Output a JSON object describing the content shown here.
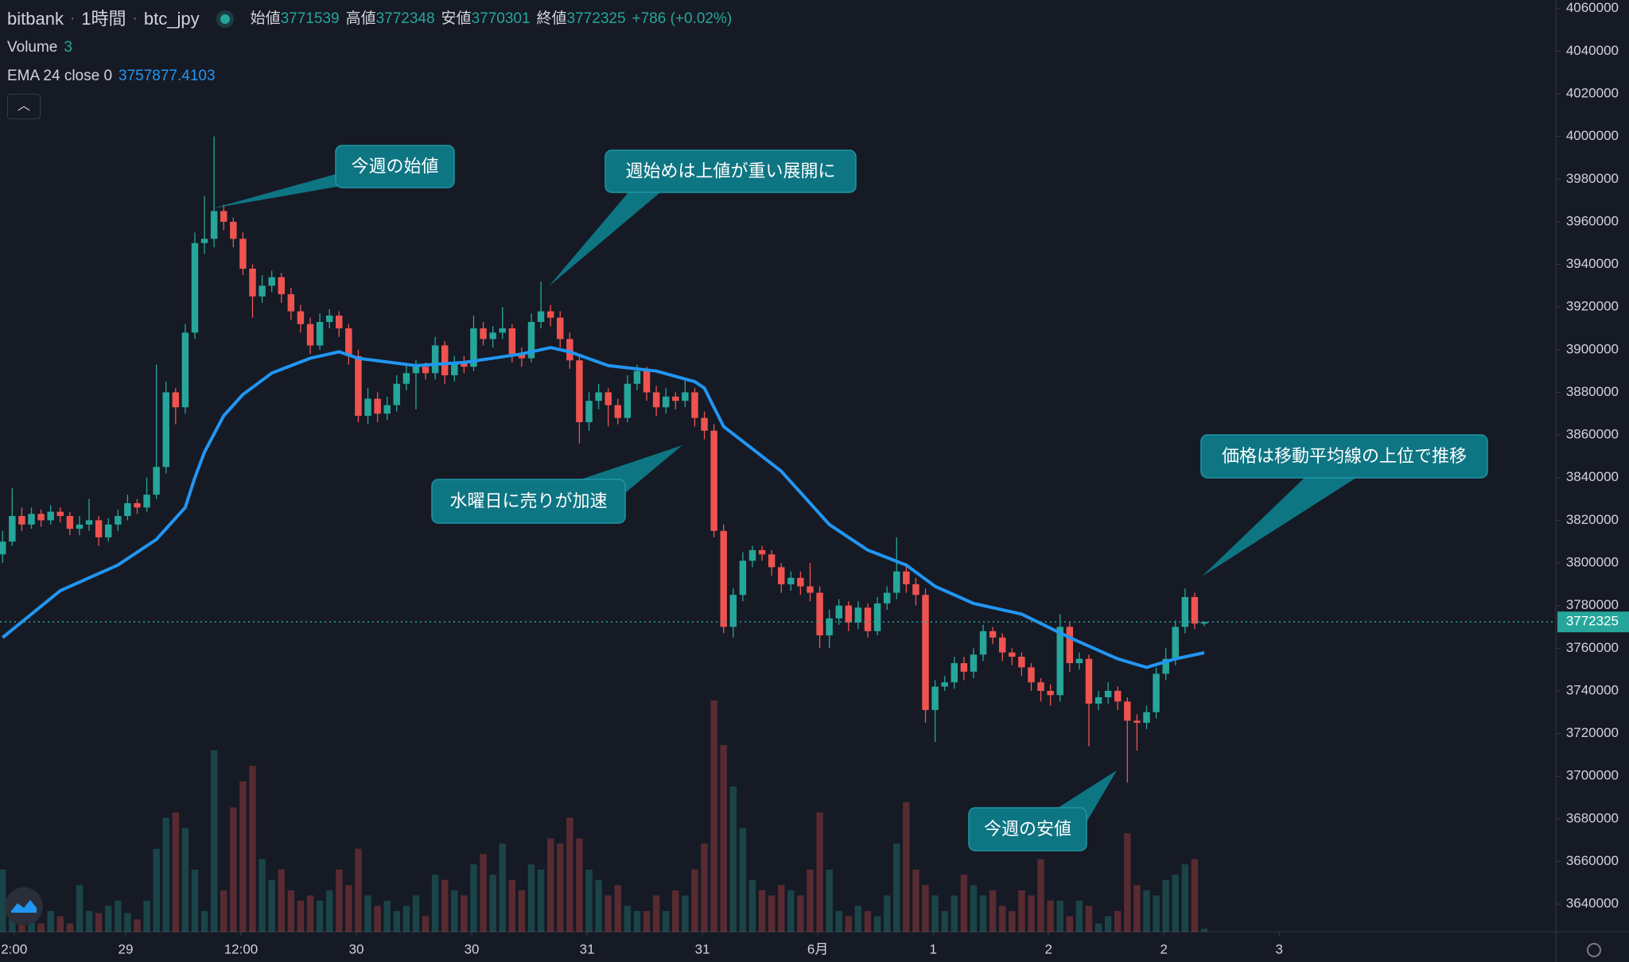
{
  "header": {
    "exchange": "bitbank",
    "interval": "1時間",
    "symbol": "btc_jpy",
    "open_label": "始値",
    "high_label": "高値",
    "low_label": "安値",
    "close_label": "終値",
    "change": "+786 (+0.02%)"
  },
  "chart_data": {
    "type": "candlestick",
    "up_color": "#26a69a",
    "down_color": "#ef5350",
    "open": [
      3804000,
      3810000,
      3822000,
      3818000,
      3823000,
      3820000,
      3824000,
      3822000,
      3816000,
      3818000,
      3820000,
      3812000,
      3818000,
      3822000,
      3828000,
      3826000,
      3832000,
      3845000,
      3880000,
      3873000,
      3908000,
      3950000,
      3952000,
      3965000,
      3960000,
      3952000,
      3938000,
      3925000,
      3930000,
      3934000,
      3926000,
      3918000,
      3912000,
      3902000,
      3913000,
      3916000,
      3910000,
      3897000,
      3869000,
      3877000,
      3870000,
      3874000,
      3884000,
      3889000,
      3892000,
      3889000,
      3902000,
      3888000,
      3894000,
      3892000,
      3910000,
      3905000,
      3908000,
      3910000,
      3898000,
      3896000,
      3913000,
      3918000,
      3915000,
      3905000,
      3895000,
      3866000,
      3876000,
      3880000,
      3874000,
      3868000,
      3884000,
      3890000,
      3880000,
      3873000,
      3878000,
      3876000,
      3880000,
      3868000,
      3862000,
      3815000,
      3770000,
      3785000,
      3801000,
      3806000,
      3804000,
      3798000,
      3790000,
      3793000,
      3789000,
      3786000,
      3766000,
      3774000,
      3780000,
      3772000,
      3779000,
      3768000,
      3781000,
      3786000,
      3796000,
      3790000,
      3785000,
      3731000,
      3742000,
      3744000,
      3753000,
      3749000,
      3757000,
      3768000,
      3765000,
      3758000,
      3756000,
      3751000,
      3744000,
      3740000,
      3738000,
      3770000,
      3753000,
      3755000,
      3734000,
      3737000,
      3740000,
      3735000,
      3726000,
      3725000,
      3730000,
      3748000,
      3755000,
      3770000,
      3784000,
      3771539
    ],
    "high": [
      3815000,
      3835000,
      3826000,
      3826000,
      3825000,
      3827000,
      3826000,
      3824000,
      3822000,
      3830000,
      3822000,
      3821000,
      3825000,
      3832000,
      3830000,
      3840000,
      3893000,
      3885000,
      3882000,
      3912000,
      3955000,
      3972000,
      4000000,
      3968000,
      3962000,
      3955000,
      3940000,
      3935000,
      3937000,
      3936000,
      3929000,
      3921000,
      3915000,
      3917000,
      3919000,
      3918000,
      3912000,
      3900000,
      3882000,
      3880000,
      3878000,
      3888000,
      3893000,
      3895000,
      3894000,
      3906000,
      3904000,
      3897000,
      3897000,
      3916000,
      3913000,
      3911000,
      3920000,
      3912000,
      3901000,
      3917000,
      3932000,
      3921000,
      3918000,
      3908000,
      3898000,
      3880000,
      3884000,
      3882000,
      3877000,
      3888000,
      3893000,
      3892000,
      3883000,
      3882000,
      3880000,
      3886000,
      3882000,
      3871000,
      3865000,
      3818000,
      3788000,
      3805000,
      3808000,
      3808000,
      3806000,
      3800000,
      3796000,
      3796000,
      3800000,
      3789000,
      3778000,
      3783000,
      3782000,
      3782000,
      3781000,
      3784000,
      3789000,
      3812000,
      3800000,
      3793000,
      3788000,
      3745000,
      3747000,
      3756000,
      3756000,
      3760000,
      3771000,
      3770000,
      3767000,
      3760000,
      3758000,
      3753000,
      3746000,
      3743000,
      3776000,
      3772000,
      3758000,
      3757000,
      3740000,
      3744000,
      3742000,
      3737000,
      3729000,
      3733000,
      3751000,
      3760000,
      3773000,
      3788000,
      3786000,
      3772348
    ],
    "low": [
      3800000,
      3808000,
      3815000,
      3816000,
      3817000,
      3818000,
      3819000,
      3813000,
      3813000,
      3815000,
      3808000,
      3810000,
      3815000,
      3820000,
      3823000,
      3824000,
      3830000,
      3842000,
      3865000,
      3870000,
      3905000,
      3945000,
      3948000,
      3956000,
      3948000,
      3935000,
      3915000,
      3922000,
      3927000,
      3922000,
      3914000,
      3908000,
      3898000,
      3900000,
      3910000,
      3906000,
      3893000,
      3866000,
      3865000,
      3866000,
      3867000,
      3871000,
      3881000,
      3872000,
      3886000,
      3886000,
      3884000,
      3885000,
      3889000,
      3890000,
      3902000,
      3901000,
      3905000,
      3894000,
      3892000,
      3894000,
      3910000,
      3911000,
      3901000,
      3891000,
      3856000,
      3862000,
      3872000,
      3864000,
      3865000,
      3866000,
      3881000,
      3876000,
      3869000,
      3870000,
      3872000,
      3873000,
      3864000,
      3858000,
      3812000,
      3767000,
      3765000,
      3782000,
      3798000,
      3801000,
      3794000,
      3786000,
      3787000,
      3785000,
      3782000,
      3760000,
      3760000,
      3771000,
      3768000,
      3769000,
      3765000,
      3766000,
      3778000,
      3783000,
      3786000,
      3780000,
      3725000,
      3716000,
      3740000,
      3741000,
      3745000,
      3746000,
      3754000,
      3762000,
      3754000,
      3752000,
      3747000,
      3740000,
      3735000,
      3733000,
      3735000,
      3749000,
      3750000,
      3714000,
      3731000,
      3734000,
      3731000,
      3697000,
      3712000,
      3722000,
      3727000,
      3745000,
      3752000,
      3767000,
      3769000,
      3770301
    ],
    "close": [
      3810000,
      3822000,
      3818000,
      3823000,
      3820000,
      3824000,
      3822000,
      3816000,
      3818000,
      3820000,
      3812000,
      3818000,
      3822000,
      3828000,
      3826000,
      3832000,
      3845000,
      3880000,
      3873000,
      3908000,
      3950000,
      3952000,
      3965000,
      3960000,
      3952000,
      3938000,
      3925000,
      3930000,
      3934000,
      3926000,
      3918000,
      3912000,
      3902000,
      3913000,
      3916000,
      3910000,
      3897000,
      3869000,
      3877000,
      3870000,
      3874000,
      3884000,
      3889000,
      3892000,
      3889000,
      3902000,
      3888000,
      3894000,
      3892000,
      3910000,
      3905000,
      3908000,
      3910000,
      3898000,
      3896000,
      3913000,
      3918000,
      3915000,
      3905000,
      3895000,
      3866000,
      3876000,
      3880000,
      3874000,
      3868000,
      3884000,
      3890000,
      3880000,
      3873000,
      3878000,
      3876000,
      3880000,
      3868000,
      3862000,
      3815000,
      3770000,
      3785000,
      3801000,
      3806000,
      3804000,
      3798000,
      3790000,
      3793000,
      3789000,
      3786000,
      3766000,
      3774000,
      3780000,
      3772000,
      3779000,
      3768000,
      3781000,
      3786000,
      3796000,
      3790000,
      3785000,
      3731000,
      3742000,
      3744000,
      3753000,
      3749000,
      3757000,
      3768000,
      3765000,
      3758000,
      3756000,
      3751000,
      3744000,
      3740000,
      3738000,
      3770000,
      3753000,
      3755000,
      3734000,
      3737000,
      3740000,
      3735000,
      3726000,
      3725000,
      3730000,
      3748000,
      3755000,
      3770000,
      3784000,
      3771539,
      3772325
    ],
    "volume_name": "Volume",
    "volume": [
      60,
      15,
      10,
      12,
      8,
      20,
      15,
      8,
      45,
      20,
      18,
      25,
      30,
      18,
      12,
      30,
      80,
      110,
      115,
      100,
      60,
      20,
      175,
      40,
      120,
      145,
      160,
      70,
      50,
      60,
      40,
      30,
      35,
      30,
      40,
      60,
      45,
      80,
      35,
      25,
      30,
      20,
      25,
      35,
      15,
      55,
      50,
      40,
      35,
      65,
      75,
      55,
      85,
      50,
      40,
      65,
      60,
      90,
      85,
      110,
      90,
      60,
      50,
      35,
      45,
      25,
      20,
      20,
      35,
      20,
      40,
      35,
      60,
      85,
      223,
      180,
      140,
      100,
      50,
      40,
      35,
      45,
      40,
      35,
      60,
      115,
      60,
      20,
      15,
      25,
      20,
      15,
      35,
      85,
      125,
      60,
      45,
      35,
      20,
      35,
      55,
      45,
      35,
      40,
      25,
      20,
      40,
      35,
      70,
      30,
      30,
      15,
      30,
      25,
      8,
      15,
      20,
      95,
      45,
      40,
      35,
      50,
      55,
      65,
      70,
      3
    ],
    "ema": {
      "name": "EMA 24 close 0",
      "color": "#2196f3",
      "x": [
        0,
        6,
        12,
        16,
        19,
        20,
        21,
        23,
        25,
        28,
        32,
        35,
        37,
        43,
        48,
        54,
        57,
        59,
        63,
        68,
        72,
        73,
        75,
        81,
        86,
        90,
        94,
        97,
        101,
        106,
        111,
        116,
        119,
        122,
        125
      ],
      "values": [
        3765000,
        3787000,
        3799000,
        3811000,
        3826000,
        3840000,
        3852000,
        3869000,
        3879000,
        3889000,
        3896000,
        3899000,
        3896000,
        3892500,
        3894000,
        3898000,
        3901000,
        3899000,
        3892500,
        3890000,
        3885000,
        3882000,
        3864000,
        3843000,
        3818000,
        3806000,
        3799000,
        3789000,
        3781000,
        3776000,
        3765000,
        3755000,
        3751000,
        3755000,
        3757877.4103
      ]
    },
    "xlim": [
      -0.27,
      161.57
    ],
    "ylim": [
      3627000,
      4064000
    ],
    "yticks": [
      3640000,
      3660000,
      3680000,
      3700000,
      3720000,
      3740000,
      3760000,
      3780000,
      3800000,
      3820000,
      3840000,
      3860000,
      3880000,
      3900000,
      3920000,
      3940000,
      3960000,
      3980000,
      4000000,
      4020000,
      4040000,
      4060000
    ],
    "xticks": [
      {
        "value": 1.2,
        "label": "2:00"
      },
      {
        "value": 12.8,
        "label": "29"
      },
      {
        "value": 24.8,
        "label": "12:00"
      },
      {
        "value": 36.8,
        "label": "30"
      },
      {
        "value": 48.8,
        "label": "30"
      },
      {
        "value": 60.8,
        "label": "31"
      },
      {
        "value": 72.8,
        "label": "31"
      },
      {
        "value": 84.8,
        "label": "6月"
      },
      {
        "value": 96.8,
        "label": "1"
      },
      {
        "value": 108.8,
        "label": "2"
      },
      {
        "value": 120.8,
        "label": "2"
      },
      {
        "value": 132.8,
        "label": "3"
      }
    ],
    "grid": false,
    "annotations": [
      "今週の始値",
      "週始めは上値が重い展開に",
      "水曜日に売りが加速",
      "価格は移動平均線の上位で推移",
      "今週の安値"
    ]
  }
}
